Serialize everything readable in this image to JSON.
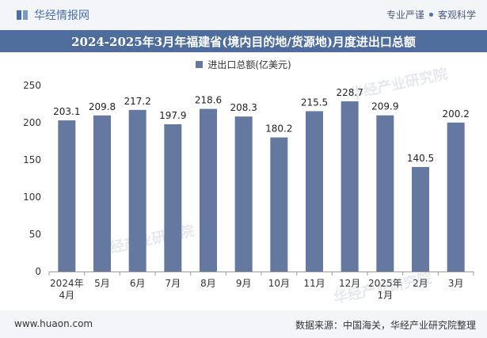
{
  "header": {
    "brand": "华经情报网",
    "slogan_left": "专业严谨",
    "slogan_right": "客观科学"
  },
  "footer": {
    "site": "www.huaon.com",
    "source": "数据来源：中国海关，华经产业研究院整理"
  },
  "watermark": "华经产业研究院",
  "colors": {
    "bar": "#6478a0",
    "title_bg": "#4e6c9c",
    "brand": "#4a6ea9"
  },
  "chart_data": {
    "type": "bar",
    "title": "2024-2025年3月年福建省(境内目的地/货源地)月度进出口总额",
    "legend": [
      "进出口总额(亿美元)"
    ],
    "xlabel": "",
    "ylabel": "",
    "ylim": [
      0,
      250
    ],
    "yticks": [
      0,
      50,
      100,
      150,
      200,
      250
    ],
    "categories": [
      "2024年4月",
      "5月",
      "6月",
      "7月",
      "8月",
      "9月",
      "10月",
      "11月",
      "12月",
      "2025年1月",
      "2月",
      "3月"
    ],
    "series": [
      {
        "name": "进出口总额(亿美元)",
        "values": [
          203.1,
          209.8,
          217.2,
          197.9,
          218.6,
          208.3,
          180.2,
          215.5,
          228.7,
          209.9,
          140.5,
          200.2
        ]
      }
    ]
  }
}
